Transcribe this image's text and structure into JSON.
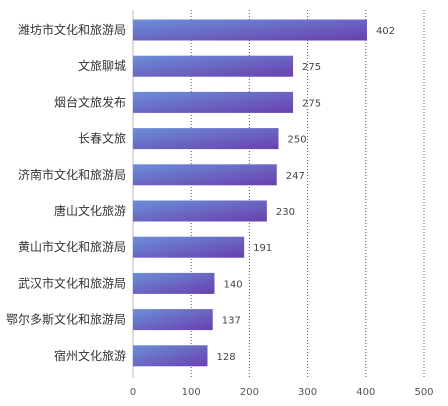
{
  "chart_data": {
    "type": "bar",
    "orientation": "horizontal",
    "categories": [
      "潍坊市文化和旅游局",
      "文旅聊城",
      "烟台文旅发布",
      "长春文旅",
      "济南市文化和旅游局",
      "唐山文化旅游",
      "黄山市文化和旅游局",
      "武汉市文化和旅游局",
      "鄂尔多斯文化和旅游局",
      "宿州文化旅游"
    ],
    "values": [
      402,
      275,
      275,
      250,
      247,
      230,
      191,
      140,
      137,
      128
    ],
    "xlim": [
      0,
      500
    ],
    "xticks": [
      0,
      100,
      200,
      300,
      400,
      500
    ],
    "grid": "vertical dotted lines at each x tick",
    "data_labels": true,
    "legend": "none",
    "colors": {
      "bar_start": "#6a8fd8",
      "bar_end": "#6a3fae",
      "grid": "#555555",
      "axis": "#bbbbbb",
      "text": "#333333"
    }
  }
}
